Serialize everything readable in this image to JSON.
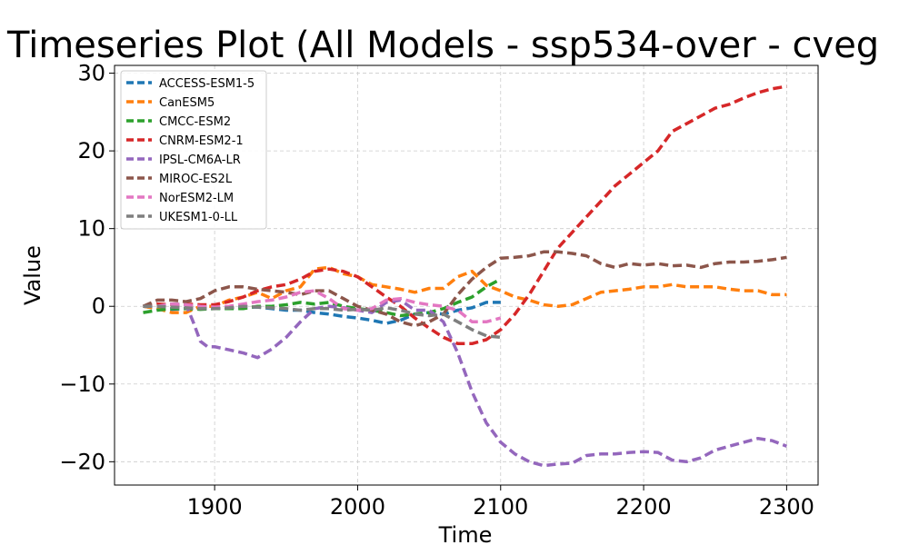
{
  "chart_data": {
    "type": "line",
    "title": "Timeseries Plot (All Models - ssp534-over - cveg",
    "xlabel": "Time",
    "ylabel": "Value",
    "xlim": [
      1830,
      2322
    ],
    "ylim": [
      -23,
      31
    ],
    "xticks": [
      1900,
      2000,
      2100,
      2200,
      2300
    ],
    "yticks": [
      -20,
      -10,
      0,
      10,
      20,
      30
    ],
    "ytick_labels": [
      "−20",
      "−10",
      "0",
      "10",
      "20",
      "30"
    ],
    "grid": true,
    "legend_position": "upper-left",
    "series": [
      {
        "name": "ACCESS-ESM1-5",
        "color": "#1f77b4",
        "points": [
          [
            1850,
            0
          ],
          [
            1860,
            -0.3
          ],
          [
            1870,
            -0.4
          ],
          [
            1880,
            -0.3
          ],
          [
            1890,
            -0.3
          ],
          [
            1900,
            -0.3
          ],
          [
            1910,
            -0.2
          ],
          [
            1920,
            -0.1
          ],
          [
            1930,
            -0.1
          ],
          [
            1940,
            -0.3
          ],
          [
            1950,
            -0.5
          ],
          [
            1960,
            -0.5
          ],
          [
            1970,
            -0.8
          ],
          [
            1980,
            -1.0
          ],
          [
            1990,
            -1.3
          ],
          [
            2000,
            -1.5
          ],
          [
            2010,
            -1.8
          ],
          [
            2020,
            -2.2
          ],
          [
            2030,
            -1.8
          ],
          [
            2040,
            -1.0
          ],
          [
            2050,
            -0.8
          ],
          [
            2060,
            -1.0
          ],
          [
            2070,
            -0.5
          ],
          [
            2080,
            -0.2
          ],
          [
            2090,
            0.5
          ],
          [
            2100,
            0.5
          ]
        ]
      },
      {
        "name": "CanESM5",
        "color": "#ff7f0e",
        "points": [
          [
            1850,
            0
          ],
          [
            1860,
            -0.3
          ],
          [
            1870,
            -0.8
          ],
          [
            1880,
            -0.8
          ],
          [
            1890,
            0
          ],
          [
            1900,
            0
          ],
          [
            1910,
            0.8
          ],
          [
            1920,
            1.2
          ],
          [
            1930,
            1.8
          ],
          [
            1940,
            1.0
          ],
          [
            1950,
            2.0
          ],
          [
            1960,
            2.5
          ],
          [
            1970,
            4.8
          ],
          [
            1980,
            5.0
          ],
          [
            1990,
            4.2
          ],
          [
            2000,
            3.8
          ],
          [
            2010,
            2.8
          ],
          [
            2020,
            2.5
          ],
          [
            2030,
            2.2
          ],
          [
            2040,
            1.8
          ],
          [
            2050,
            2.3
          ],
          [
            2060,
            2.3
          ],
          [
            2070,
            3.8
          ],
          [
            2080,
            4.5
          ],
          [
            2090,
            2.7
          ],
          [
            2100,
            2.0
          ],
          [
            2110,
            1.2
          ],
          [
            2120,
            0.8
          ],
          [
            2130,
            0.2
          ],
          [
            2140,
            0.0
          ],
          [
            2150,
            0.2
          ],
          [
            2160,
            1.0
          ],
          [
            2170,
            1.8
          ],
          [
            2180,
            2.0
          ],
          [
            2190,
            2.2
          ],
          [
            2200,
            2.5
          ],
          [
            2210,
            2.5
          ],
          [
            2220,
            2.8
          ],
          [
            2230,
            2.5
          ],
          [
            2240,
            2.5
          ],
          [
            2250,
            2.5
          ],
          [
            2260,
            2.2
          ],
          [
            2270,
            2.0
          ],
          [
            2280,
            2.0
          ],
          [
            2290,
            1.5
          ],
          [
            2300,
            1.5
          ]
        ]
      },
      {
        "name": "CMCC-ESM2",
        "color": "#2ca02c",
        "points": [
          [
            1850,
            -0.8
          ],
          [
            1860,
            -0.5
          ],
          [
            1870,
            -0.3
          ],
          [
            1880,
            -0.3
          ],
          [
            1890,
            -0.4
          ],
          [
            1900,
            -0.3
          ],
          [
            1910,
            -0.3
          ],
          [
            1920,
            -0.3
          ],
          [
            1930,
            0
          ],
          [
            1940,
            0
          ],
          [
            1950,
            0.2
          ],
          [
            1960,
            0.5
          ],
          [
            1970,
            0.3
          ],
          [
            1980,
            0.5
          ],
          [
            1990,
            0.0
          ],
          [
            2000,
            -0.3
          ],
          [
            2010,
            -0.5
          ],
          [
            2020,
            -0.8
          ],
          [
            2030,
            -1.2
          ],
          [
            2040,
            -1.0
          ],
          [
            2050,
            -0.8
          ],
          [
            2060,
            -0.3
          ],
          [
            2070,
            0.5
          ],
          [
            2080,
            1.2
          ],
          [
            2090,
            2.5
          ],
          [
            2100,
            3.5
          ]
        ]
      },
      {
        "name": "CNRM-ESM2-1",
        "color": "#d62728",
        "points": [
          [
            1850,
            0
          ],
          [
            1860,
            0.3
          ],
          [
            1870,
            0.2
          ],
          [
            1880,
            0.3
          ],
          [
            1890,
            0.2
          ],
          [
            1900,
            0.2
          ],
          [
            1910,
            0.6
          ],
          [
            1920,
            1.2
          ],
          [
            1930,
            2.0
          ],
          [
            1940,
            2.5
          ],
          [
            1950,
            2.8
          ],
          [
            1960,
            3.5
          ],
          [
            1970,
            4.5
          ],
          [
            1980,
            4.8
          ],
          [
            1990,
            4.5
          ],
          [
            2000,
            3.8
          ],
          [
            2010,
            2.5
          ],
          [
            2020,
            1.2
          ],
          [
            2030,
            0.0
          ],
          [
            2040,
            -1.5
          ],
          [
            2050,
            -2.8
          ],
          [
            2060,
            -4.0
          ],
          [
            2070,
            -4.8
          ],
          [
            2080,
            -4.8
          ],
          [
            2090,
            -4.3
          ],
          [
            2100,
            -3.0
          ],
          [
            2110,
            -1.0
          ],
          [
            2120,
            1.5
          ],
          [
            2130,
            4.5
          ],
          [
            2140,
            7.5
          ],
          [
            2150,
            9.5
          ],
          [
            2160,
            11.5
          ],
          [
            2170,
            13.5
          ],
          [
            2180,
            15.5
          ],
          [
            2190,
            17.0
          ],
          [
            2200,
            18.5
          ],
          [
            2210,
            20.0
          ],
          [
            2220,
            22.5
          ],
          [
            2230,
            23.5
          ],
          [
            2240,
            24.5
          ],
          [
            2250,
            25.5
          ],
          [
            2260,
            26.0
          ],
          [
            2270,
            26.8
          ],
          [
            2280,
            27.5
          ],
          [
            2290,
            28.0
          ],
          [
            2300,
            28.3
          ]
        ]
      },
      {
        "name": "IPSL-CM6A-LR",
        "color": "#9467bd",
        "points": [
          [
            1850,
            0
          ],
          [
            1860,
            0
          ],
          [
            1870,
            0.3
          ],
          [
            1880,
            0.2
          ],
          [
            1885,
            -2
          ],
          [
            1890,
            -4.5
          ],
          [
            1895,
            -5.2
          ],
          [
            1900,
            -5.2
          ],
          [
            1910,
            -5.6
          ],
          [
            1920,
            -6.0
          ],
          [
            1930,
            -6.6
          ],
          [
            1940,
            -5.5
          ],
          [
            1950,
            -4.0
          ],
          [
            1960,
            -2.0
          ],
          [
            1970,
            -0.3
          ],
          [
            1980,
            0
          ],
          [
            1990,
            -0.2
          ],
          [
            2000,
            -0.5
          ],
          [
            2010,
            -0.8
          ],
          [
            2020,
            0.5
          ],
          [
            2030,
            0.8
          ],
          [
            2040,
            -0.5
          ],
          [
            2050,
            -0.5
          ],
          [
            2060,
            -2.0
          ],
          [
            2070,
            -6.0
          ],
          [
            2080,
            -11.0
          ],
          [
            2090,
            -15.0
          ],
          [
            2100,
            -17.5
          ],
          [
            2110,
            -19.0
          ],
          [
            2120,
            -20.0
          ],
          [
            2130,
            -20.5
          ],
          [
            2140,
            -20.3
          ],
          [
            2150,
            -20.2
          ],
          [
            2160,
            -19.2
          ],
          [
            2170,
            -19.0
          ],
          [
            2180,
            -19.0
          ],
          [
            2190,
            -18.8
          ],
          [
            2200,
            -18.7
          ],
          [
            2210,
            -18.8
          ],
          [
            2220,
            -19.8
          ],
          [
            2230,
            -20.0
          ],
          [
            2240,
            -19.5
          ],
          [
            2250,
            -18.5
          ],
          [
            2260,
            -18.0
          ],
          [
            2270,
            -17.5
          ],
          [
            2280,
            -17.0
          ],
          [
            2290,
            -17.3
          ],
          [
            2300,
            -18.0
          ]
        ]
      },
      {
        "name": "MIROC-ES2L",
        "color": "#8c564b",
        "points": [
          [
            1850,
            0
          ],
          [
            1860,
            0.8
          ],
          [
            1870,
            0.8
          ],
          [
            1880,
            0.6
          ],
          [
            1890,
            1.0
          ],
          [
            1900,
            2.0
          ],
          [
            1910,
            2.5
          ],
          [
            1920,
            2.5
          ],
          [
            1930,
            2.2
          ],
          [
            1940,
            2.0
          ],
          [
            1950,
            1.8
          ],
          [
            1960,
            1.5
          ],
          [
            1970,
            2.0
          ],
          [
            1980,
            2.0
          ],
          [
            1990,
            1.0
          ],
          [
            2000,
            0.0
          ],
          [
            2010,
            -0.5
          ],
          [
            2020,
            -1.0
          ],
          [
            2030,
            -2.0
          ],
          [
            2040,
            -2.5
          ],
          [
            2050,
            -2.0
          ],
          [
            2060,
            -1.0
          ],
          [
            2070,
            1.5
          ],
          [
            2080,
            3.5
          ],
          [
            2090,
            5.0
          ],
          [
            2100,
            6.2
          ],
          [
            2110,
            6.3
          ],
          [
            2120,
            6.5
          ],
          [
            2130,
            7.0
          ],
          [
            2140,
            7.0
          ],
          [
            2150,
            6.8
          ],
          [
            2160,
            6.5
          ],
          [
            2170,
            5.5
          ],
          [
            2180,
            5.0
          ],
          [
            2190,
            5.5
          ],
          [
            2200,
            5.3
          ],
          [
            2210,
            5.5
          ],
          [
            2220,
            5.2
          ],
          [
            2230,
            5.3
          ],
          [
            2240,
            5.0
          ],
          [
            2250,
            5.5
          ],
          [
            2260,
            5.7
          ],
          [
            2270,
            5.7
          ],
          [
            2280,
            5.8
          ],
          [
            2290,
            6.0
          ],
          [
            2300,
            6.3
          ]
        ]
      },
      {
        "name": "NorESM2-LM",
        "color": "#e377c2",
        "points": [
          [
            1850,
            0
          ],
          [
            1860,
            0
          ],
          [
            1870,
            0.3
          ],
          [
            1880,
            0.2
          ],
          [
            1890,
            0
          ],
          [
            1900,
            -0.1
          ],
          [
            1910,
            0.0
          ],
          [
            1920,
            0.3
          ],
          [
            1930,
            0.6
          ],
          [
            1940,
            0.8
          ],
          [
            1950,
            1.2
          ],
          [
            1960,
            1.8
          ],
          [
            1970,
            2.0
          ],
          [
            1980,
            1.0
          ],
          [
            1990,
            -0.3
          ],
          [
            2000,
            -0.5
          ],
          [
            2010,
            -0.3
          ],
          [
            2020,
            0.8
          ],
          [
            2030,
            1.0
          ],
          [
            2040,
            0.5
          ],
          [
            2050,
            0.2
          ],
          [
            2060,
            0
          ],
          [
            2070,
            -0.5
          ],
          [
            2080,
            -2.0
          ],
          [
            2090,
            -2.0
          ],
          [
            2100,
            -1.5
          ]
        ]
      },
      {
        "name": "UKESM1-0-LL",
        "color": "#7f7f7f",
        "points": [
          [
            1850,
            0
          ],
          [
            1860,
            0
          ],
          [
            1870,
            -0.1
          ],
          [
            1880,
            -0.2
          ],
          [
            1890,
            -0.3
          ],
          [
            1900,
            -0.3
          ],
          [
            1910,
            -0.2
          ],
          [
            1920,
            0
          ],
          [
            1930,
            -0.1
          ],
          [
            1940,
            -0.2
          ],
          [
            1950,
            -0.3
          ],
          [
            1960,
            -0.5
          ],
          [
            1970,
            -0.3
          ],
          [
            1980,
            -0.3
          ],
          [
            1990,
            -0.5
          ],
          [
            2000,
            -0.4
          ],
          [
            2010,
            -0.5
          ],
          [
            2020,
            -0.2
          ],
          [
            2030,
            -0.5
          ],
          [
            2040,
            -1.0
          ],
          [
            2050,
            -1.2
          ],
          [
            2060,
            -1.0
          ],
          [
            2070,
            -2.0
          ],
          [
            2080,
            -3.0
          ],
          [
            2090,
            -3.8
          ],
          [
            2100,
            -4.0
          ]
        ]
      }
    ]
  }
}
